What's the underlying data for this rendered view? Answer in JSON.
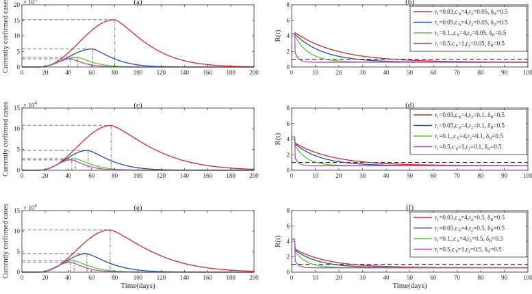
{
  "colors": {
    "red": "#d62728",
    "blue": "#1f4e9e",
    "green": "#5ec232",
    "purple": "#b04fb5",
    "gray": "#9a9a9a",
    "black": "#000000"
  },
  "chart_data": [
    {
      "id": "a",
      "type": "line",
      "title": "(a)",
      "xlabel": "",
      "ylabel": "Currently corfirmed cases",
      "multiplier_label": "× 10",
      "multiplier_exp": "5",
      "xlim": [
        0,
        200
      ],
      "ylim": [
        0,
        20
      ],
      "xticks": [
        "0",
        "20",
        "40",
        "60",
        "80",
        "100",
        "120",
        "140",
        "160",
        "180",
        "200"
      ],
      "yticks": [
        "0",
        "5",
        "10",
        "15",
        "20"
      ],
      "series": [
        {
          "name": "red",
          "color": "#d62728",
          "peak_day": 80,
          "peak": 15.2,
          "rise": 15,
          "tail": 0.028
        },
        {
          "name": "blue",
          "color": "#1f4e9e",
          "peak_day": 61,
          "peak": 5.8,
          "rise": 12,
          "tail": 0.045
        },
        {
          "name": "green",
          "color": "#5ec232",
          "peak_day": 48,
          "peak": 3.1,
          "rise": 10,
          "tail": 0.06
        },
        {
          "name": "purple",
          "color": "#b04fb5",
          "peak_day": 42,
          "peak": 2.6,
          "rise": 9,
          "tail": 0.07
        }
      ]
    },
    {
      "id": "c",
      "type": "line",
      "title": "(c)",
      "xlabel": "",
      "ylabel": "Currently corfirmed cases",
      "multiplier_label": "× 10",
      "multiplier_exp": "4",
      "xlim": [
        0,
        200
      ],
      "ylim": [
        0,
        15
      ],
      "xticks": [
        "0",
        "20",
        "40",
        "60",
        "80",
        "100",
        "120",
        "140",
        "160",
        "180",
        "200"
      ],
      "yticks": [
        "0",
        "5",
        "10",
        "15"
      ],
      "series": [
        {
          "name": "red",
          "color": "#d62728",
          "peak_day": 77,
          "peak": 10.8,
          "rise": 14,
          "tail": 0.022
        },
        {
          "name": "blue",
          "color": "#1f4e9e",
          "peak_day": 57,
          "peak": 4.8,
          "rise": 12,
          "tail": 0.04
        },
        {
          "name": "green",
          "color": "#5ec232",
          "peak_day": 46,
          "peak": 2.8,
          "rise": 10,
          "tail": 0.055
        },
        {
          "name": "purple",
          "color": "#b04fb5",
          "peak_day": 43,
          "peak": 2.5,
          "rise": 9,
          "tail": 0.065
        }
      ]
    },
    {
      "id": "e",
      "type": "line",
      "title": "(e)",
      "xlabel": "Time(days)",
      "ylabel": "Currently corfirmed cases",
      "multiplier_label": "× 10",
      "multiplier_exp": "4",
      "xlim": [
        0,
        200
      ],
      "ylim": [
        0,
        15
      ],
      "xticks": [
        "0",
        "20",
        "40",
        "60",
        "80",
        "100",
        "120",
        "140",
        "160",
        "180",
        "200"
      ],
      "yticks": [
        "0",
        "5",
        "10",
        "15"
      ],
      "series": [
        {
          "name": "red",
          "color": "#d62728",
          "peak_day": 76,
          "peak": 10.3,
          "rise": 14,
          "tail": 0.022
        },
        {
          "name": "blue",
          "color": "#1f4e9e",
          "peak_day": 56,
          "peak": 4.5,
          "rise": 12,
          "tail": 0.04
        },
        {
          "name": "green",
          "color": "#5ec232",
          "peak_day": 45,
          "peak": 2.8,
          "rise": 10,
          "tail": 0.055
        },
        {
          "name": "purple",
          "color": "#b04fb5",
          "peak_day": 42,
          "peak": 2.4,
          "rise": 9,
          "tail": 0.065
        }
      ]
    },
    {
      "id": "b",
      "type": "line",
      "title": "(b)",
      "xlabel": "",
      "ylabel": "R(t)",
      "xlim": [
        0,
        100
      ],
      "ylim": [
        0,
        8
      ],
      "xticks": [
        "0",
        "10",
        "20",
        "30",
        "40",
        "50",
        "60",
        "70",
        "80",
        "90",
        "100"
      ],
      "yticks": [
        "0",
        "2",
        "4",
        "6",
        "8"
      ],
      "threshold": 1,
      "legend": [
        {
          "r1": "0.03",
          "cb": "4",
          "r2": "0.05",
          "d": "0.5",
          "color": "#d62728"
        },
        {
          "r1": "0.05",
          "cb": "4",
          "r2": "0.05",
          "d": "0.5",
          "color": "#1f4e9e"
        },
        {
          "r1": "0.1,",
          "cb": "4",
          "r2": "0.05",
          "d": "0.5",
          "color": "#5ec232"
        },
        {
          "r1": "0.5",
          "cb": "1",
          "r2": "0.05",
          "d": "0.5",
          "color": "#b04fb5"
        }
      ],
      "series": [
        {
          "name": "red",
          "color": "#d62728",
          "start": 4.3,
          "jump": 3.8,
          "end": 0.62,
          "tau": 18
        },
        {
          "name": "blue",
          "color": "#1f4e9e",
          "start": 4.3,
          "jump": 3.6,
          "end": 0.6,
          "tau": 12
        },
        {
          "name": "green",
          "color": "#5ec232",
          "start": 4.3,
          "jump": 3.3,
          "end": 0.62,
          "tau": 6
        },
        {
          "name": "purple",
          "color": "#b04fb5",
          "start": 4.3,
          "jump": 1.2,
          "end": 0.62,
          "tau": 1.5
        }
      ]
    },
    {
      "id": "d",
      "type": "line",
      "title": "(d)",
      "xlabel": "",
      "ylabel": "R(t)",
      "xlim": [
        0,
        100
      ],
      "ylim": [
        0,
        8
      ],
      "xticks": [
        "0",
        "10",
        "20",
        "30",
        "40",
        "50",
        "60",
        "70",
        "80",
        "90",
        "100"
      ],
      "yticks": [
        "0",
        "2",
        "4",
        "6",
        "8"
      ],
      "threshold": 1,
      "legend": [
        {
          "r1": "0.03",
          "cb": "4",
          "r2": "0.1",
          "d": "0.5",
          "color": "#d62728"
        },
        {
          "r1": "0.05",
          "cb": "4",
          "r2": "0.1",
          "d": "0.5",
          "color": "#1f4e9e"
        },
        {
          "r1": "0.1,",
          "cb": "4",
          "r2": "0.1",
          "d": "0.5",
          "color": "#5ec232"
        },
        {
          "r1": "0.5",
          "cb": "1",
          "r2": "0.1",
          "d": "0.5",
          "color": "#b04fb5"
        }
      ],
      "series": [
        {
          "name": "red",
          "color": "#d62728",
          "start": 4.3,
          "jump": 2.9,
          "end": 0.6,
          "tau": 16
        },
        {
          "name": "blue",
          "color": "#1f4e9e",
          "start": 4.3,
          "jump": 2.8,
          "end": 0.58,
          "tau": 11
        },
        {
          "name": "green",
          "color": "#5ec232",
          "start": 4.3,
          "jump": 2.6,
          "end": 0.58,
          "tau": 5
        },
        {
          "name": "purple",
          "color": "#b04fb5",
          "start": 4.3,
          "jump": 1.0,
          "end": 0.58,
          "tau": 1.5
        }
      ]
    },
    {
      "id": "f",
      "type": "line",
      "title": "(f)",
      "xlabel": "Time(days)",
      "ylabel": "R(t)",
      "xlim": [
        0,
        100
      ],
      "ylim": [
        0,
        8
      ],
      "xticks": [
        "0",
        "10",
        "20",
        "30",
        "40",
        "50",
        "60",
        "70",
        "80",
        "90",
        "100"
      ],
      "yticks": [
        "0",
        "2",
        "4",
        "6",
        "8"
      ],
      "threshold": 1,
      "legend": [
        {
          "r1": "0.03",
          "cb": "4",
          "r2": "0.5",
          "d": "0.5",
          "color": "#d62728"
        },
        {
          "r1": "0.05",
          "cb": "4",
          "r2": "0.5",
          "d": "0.5",
          "color": "#1f4e9e"
        },
        {
          "r1": "0.1,",
          "cb": "4",
          "r2": "0.5",
          "d": "0.5",
          "color": "#5ec232"
        },
        {
          "r1": "0.5",
          "cb": "1",
          "r2": "0.5",
          "d": "0.5",
          "color": "#b04fb5"
        }
      ],
      "series": [
        {
          "name": "red",
          "color": "#d62728",
          "start": 4.3,
          "jump": 2.4,
          "end": 0.58,
          "tau": 14
        },
        {
          "name": "blue",
          "color": "#1f4e9e",
          "start": 4.3,
          "jump": 2.3,
          "end": 0.56,
          "tau": 10
        },
        {
          "name": "green",
          "color": "#5ec232",
          "start": 4.3,
          "jump": 2.1,
          "end": 0.56,
          "tau": 5
        },
        {
          "name": "purple",
          "color": "#b04fb5",
          "start": 4.3,
          "jump": 0.9,
          "end": 0.56,
          "tau": 1.5
        }
      ]
    }
  ]
}
